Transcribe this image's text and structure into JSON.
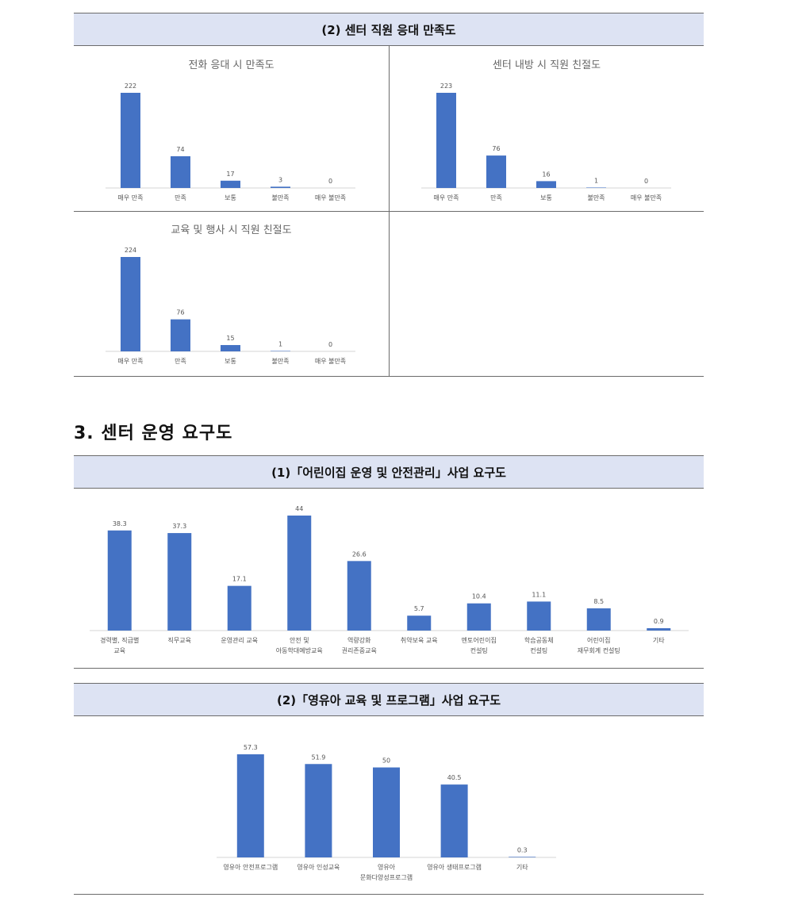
{
  "section2": {
    "header": "(2) 센터 직원 응대 만족도",
    "charts": [
      {
        "title": "전화 응대 시 만족도",
        "type": "bar",
        "categories": [
          "매우 만족",
          "만족",
          "보통",
          "불만족",
          "매우 불만족"
        ],
        "values": [
          222,
          74,
          17,
          3,
          0
        ]
      },
      {
        "title": "센터 내방 시 직원 친절도",
        "type": "bar",
        "categories": [
          "매우 만족",
          "만족",
          "보통",
          "불만족",
          "매우 불만족"
        ],
        "values": [
          223,
          76,
          16,
          1,
          0
        ]
      },
      {
        "title": "교육 및 행사 시 직원 친절도",
        "type": "bar",
        "categories": [
          "매우 만족",
          "만족",
          "보통",
          "불만족",
          "매우 불만족"
        ],
        "values": [
          224,
          76,
          15,
          1,
          0
        ]
      }
    ]
  },
  "section3": {
    "heading": "3. 센터 운영 요구도",
    "sub1": {
      "header": "(1)「어린이집 운영 및 안전관리」사업 요구도",
      "chart": {
        "type": "bar",
        "categories": [
          [
            "경력별, 직급별",
            "교육"
          ],
          [
            "직무교육"
          ],
          [
            "운영관리 교육"
          ],
          [
            "안전 및",
            "아동학대예방교육"
          ],
          [
            "역량강화",
            "권리존중교육"
          ],
          [
            "취약보육 교육"
          ],
          [
            "멘토어린이집",
            "컨설팅"
          ],
          [
            "학습공동체",
            "컨설팅"
          ],
          [
            "어린이집",
            "재무회계 컨설팅"
          ],
          [
            "기타"
          ]
        ],
        "values": [
          38.3,
          37.3,
          17.1,
          44.0,
          26.6,
          5.7,
          10.4,
          11.1,
          8.5,
          0.9
        ]
      }
    },
    "sub2": {
      "header": "(2)「영유아 교육 및 프로그램」사업 요구도",
      "chart": {
        "type": "bar",
        "categories": [
          [
            "영유아 안전프로그램"
          ],
          [
            "영유아 인성교육"
          ],
          [
            "영유아",
            "문화다양성프로그램"
          ],
          [
            "영유아 생태프로그램"
          ],
          [
            "기타"
          ]
        ],
        "values": [
          57.3,
          51.9,
          50.0,
          40.5,
          0.3
        ]
      }
    }
  },
  "chart_data": [
    {
      "type": "bar",
      "title": "전화 응대 시 만족도",
      "categories": [
        "매우 만족",
        "만족",
        "보통",
        "불만족",
        "매우 불만족"
      ],
      "values": [
        222,
        74,
        17,
        3,
        0
      ]
    },
    {
      "type": "bar",
      "title": "센터 내방 시 직원 친절도",
      "categories": [
        "매우 만족",
        "만족",
        "보통",
        "불만족",
        "매우 불만족"
      ],
      "values": [
        223,
        76,
        16,
        1,
        0
      ]
    },
    {
      "type": "bar",
      "title": "교육 및 행사 시 직원 친절도",
      "categories": [
        "매우 만족",
        "만족",
        "보통",
        "불만족",
        "매우 불만족"
      ],
      "values": [
        224,
        76,
        15,
        1,
        0
      ]
    },
    {
      "type": "bar",
      "title": "",
      "categories": [
        "경력별, 직급별 교육",
        "직무교육",
        "운영관리 교육",
        "안전 및 아동학대예방교육",
        "역량강화 권리존중교육",
        "취약보육 교육",
        "멘토어린이집 컨설팅",
        "학습공동체 컨설팅",
        "어린이집 재무회계 컨설팅",
        "기타"
      ],
      "values": [
        38.3,
        37.3,
        17.1,
        44.0,
        26.6,
        5.7,
        10.4,
        11.1,
        8.5,
        0.9
      ]
    },
    {
      "type": "bar",
      "title": "",
      "categories": [
        "영유아 안전프로그램",
        "영유아 인성교육",
        "영유아 문화다양성프로그램",
        "영유아 생태프로그램",
        "기타"
      ],
      "values": [
        57.3,
        51.9,
        50.0,
        40.5,
        0.3
      ]
    }
  ]
}
